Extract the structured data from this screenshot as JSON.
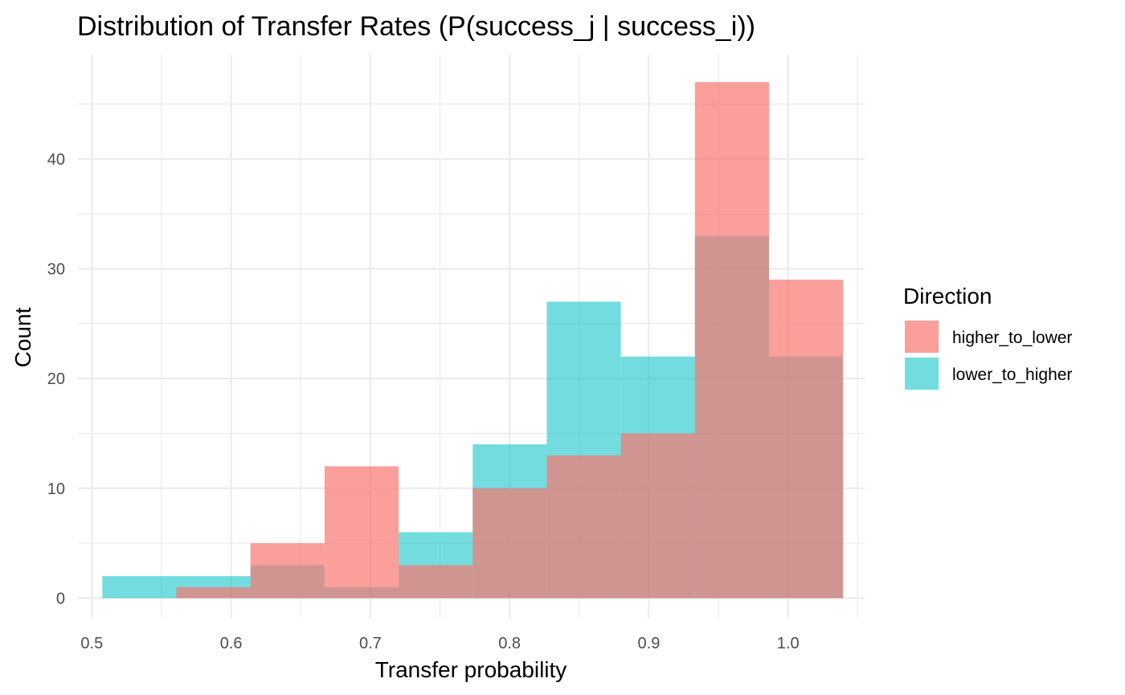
{
  "chart_data": {
    "type": "histogram",
    "title": "Distribution of Transfer Rates (P(success_j | success_i))",
    "xlabel": "Transfer probability",
    "ylabel": "Count",
    "xlim": [
      0.49,
      1.055
    ],
    "ylim": [
      -1.8,
      49.5
    ],
    "xticks": [
      0.5,
      0.6,
      0.7,
      0.8,
      0.9,
      1.0
    ],
    "xtick_labels": [
      "0.5",
      "0.6",
      "0.7",
      "0.8",
      "0.9",
      "1.0"
    ],
    "yticks": [
      0,
      10,
      20,
      30,
      40
    ],
    "ytick_labels": [
      "0",
      "10",
      "20",
      "30",
      "40"
    ],
    "grid": true,
    "legend": {
      "title": "Direction",
      "position": "right"
    },
    "bin_edges": [
      0.5075,
      0.5607,
      0.6139,
      0.6671,
      0.7203,
      0.7735,
      0.8267,
      0.8799,
      0.9331,
      0.9863,
      1.0395
    ],
    "series": [
      {
        "name": "lower_to_higher",
        "color": "#00BFC4",
        "opacity": 0.55,
        "counts": [
          2,
          2,
          3,
          1,
          6,
          14,
          27,
          22,
          33,
          22
        ]
      },
      {
        "name": "higher_to_lower",
        "color": "#F8766D",
        "opacity": 0.7,
        "counts": [
          0,
          1,
          5,
          12,
          3,
          10,
          13,
          15,
          47,
          29
        ]
      }
    ]
  }
}
